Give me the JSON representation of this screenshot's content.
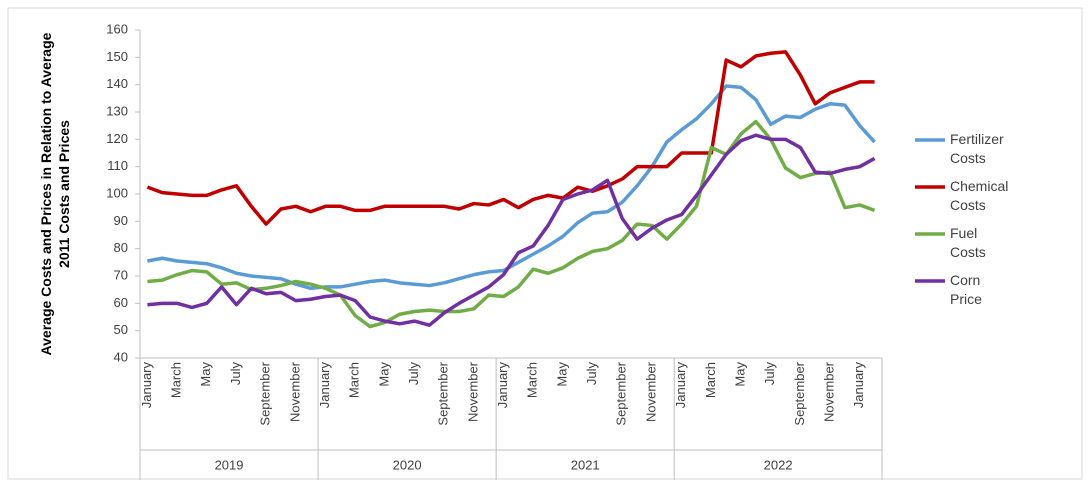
{
  "chart_data": {
    "type": "line",
    "y_label": "Average Costs and Prices in Relation to Average 2011 Costs and Prices",
    "categories": [
      "January",
      null,
      "March",
      null,
      "May",
      null,
      "July",
      null,
      "September",
      null,
      "November",
      null,
      "January",
      null,
      "March",
      null,
      "May",
      null,
      "July",
      null,
      "September",
      null,
      "November",
      null,
      "January",
      null,
      "March",
      null,
      "May",
      null,
      "July",
      null,
      "September",
      null,
      "November",
      null,
      "January",
      null,
      "March",
      null,
      "May",
      null,
      "July",
      null,
      "September",
      null,
      "November",
      null,
      "January",
      null
    ],
    "category_years": [
      "2019",
      "2019",
      "2019",
      "2019",
      "2019",
      "2019",
      "2019",
      "2019",
      "2019",
      "2019",
      "2019",
      "2019",
      "2020",
      "2020",
      "2020",
      "2020",
      "2020",
      "2020",
      "2020",
      "2020",
      "2020",
      "2020",
      "2020",
      "2020",
      "2021",
      "2021",
      "2021",
      "2021",
      "2021",
      "2021",
      "2021",
      "2021",
      "2021",
      "2021",
      "2021",
      "2021",
      "2022",
      "2022",
      "2022",
      "2022",
      "2022",
      "2022",
      "2022",
      "2022",
      "2022",
      "2022",
      "2022",
      "2022",
      "2022",
      "2022"
    ],
    "ylim": [
      40,
      160
    ],
    "yticks": [
      40,
      50,
      60,
      70,
      80,
      90,
      100,
      110,
      120,
      130,
      140,
      150,
      160
    ],
    "grid": false,
    "legend": "right",
    "series": [
      {
        "name": "Fertilizer Costs",
        "color": "#5b9bd5",
        "values": [
          75.5,
          76.5,
          75.5,
          75,
          74.5,
          73,
          71,
          70,
          69.5,
          69,
          67,
          65.5,
          66,
          66,
          67,
          68,
          68.5,
          67.5,
          67,
          66.5,
          67.5,
          69,
          70.5,
          71.5,
          72,
          75,
          78,
          81,
          84.5,
          89.5,
          93,
          93.5,
          97,
          103,
          110,
          119,
          123.5,
          127.5,
          133,
          139.5,
          139,
          134.5,
          125.5,
          128.5,
          128,
          131,
          133,
          132.5,
          125,
          119
        ]
      },
      {
        "name": "Chemical Costs",
        "color": "#c00000",
        "values": [
          102.5,
          100.5,
          100,
          99.5,
          99.5,
          101.5,
          103,
          95.5,
          89,
          94.5,
          95.5,
          93.5,
          95.5,
          95.5,
          94,
          94,
          95.5,
          95.5,
          95.5,
          95.5,
          95.5,
          94.5,
          96.5,
          96,
          98,
          95,
          98,
          99.5,
          98.5,
          102.5,
          101,
          103,
          105.5,
          110,
          110,
          110,
          115,
          115,
          115,
          149,
          146.5,
          150.5,
          151.5,
          152,
          143.5,
          133,
          137,
          139,
          141,
          141
        ]
      },
      {
        "name": "Fuel Costs",
        "color": "#70ad47",
        "values": [
          68,
          68.5,
          70.5,
          72,
          71.5,
          67,
          67.5,
          65,
          65.5,
          66.5,
          68,
          67,
          65.5,
          63,
          55.5,
          51.5,
          53,
          56,
          57,
          57.5,
          57,
          57,
          58,
          63,
          62.5,
          66,
          72.5,
          71,
          73,
          76.5,
          79,
          80,
          83,
          89,
          88.5,
          83.5,
          89,
          95.5,
          117,
          114.5,
          122,
          126.5,
          120,
          109.5,
          106,
          107.5,
          108,
          95,
          96,
          94
        ]
      },
      {
        "name": "Corn Price",
        "color": "#7030a0",
        "values": [
          59.5,
          60,
          60,
          58.5,
          60,
          66,
          59.5,
          65.5,
          63.5,
          64,
          61,
          61.5,
          62.5,
          63,
          61,
          55,
          53.5,
          52.5,
          53.5,
          52,
          56.5,
          60,
          63,
          66,
          70.5,
          78.5,
          81,
          88.5,
          98,
          100,
          101.5,
          105,
          91,
          83.5,
          87.5,
          90.5,
          92.5,
          99.5,
          107,
          114.5,
          119.5,
          121.5,
          120,
          120,
          117,
          108,
          107.5,
          109,
          110,
          113
        ]
      }
    ]
  }
}
